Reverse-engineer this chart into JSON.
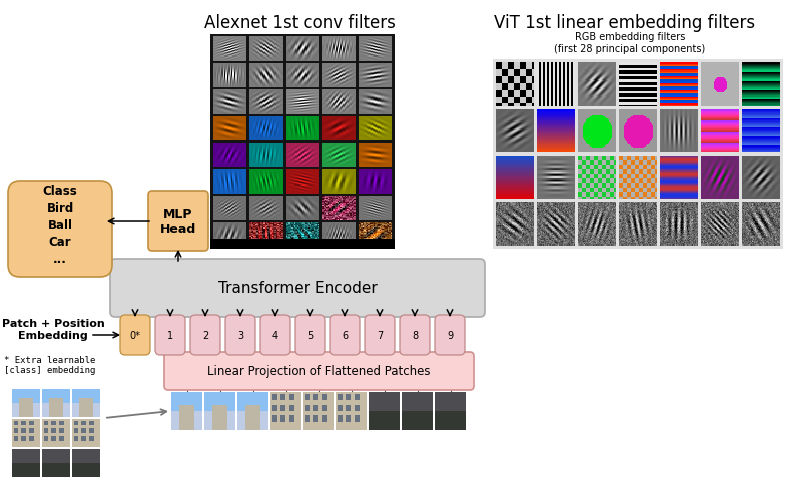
{
  "title_alexnet": "Alexnet 1st conv filters",
  "title_vit": "ViT 1st linear embedding filters",
  "vit_subtitle": "RGB embedding filters\n(first 28 principal components)",
  "transformer_encoder_label": "Transformer Encoder",
  "mlp_head_label": "MLP\nHead",
  "class_label": "Class\nBird\nBall\nCar\n...",
  "linear_proj_label": "Linear Projection of Flattened Patches",
  "patch_pos_label": "Patch + Position\nEmbedding",
  "extra_learnable_label": "* Extra learnable\n[class] embedding",
  "patch_numbers": [
    "0*",
    "1",
    "2",
    "3",
    "4",
    "5",
    "6",
    "7",
    "8",
    "9"
  ],
  "bg_color": "#ffffff",
  "transformer_box_color": "#d8d8d8",
  "mlp_box_color": "#f5c88a",
  "class_box_color": "#f5c88a",
  "linear_proj_color": "#fad4d4",
  "patch_token_color": "#f0c8d0",
  "class_token_color": "#f5c88a",
  "title_fontsize": 12,
  "label_fontsize": 9
}
